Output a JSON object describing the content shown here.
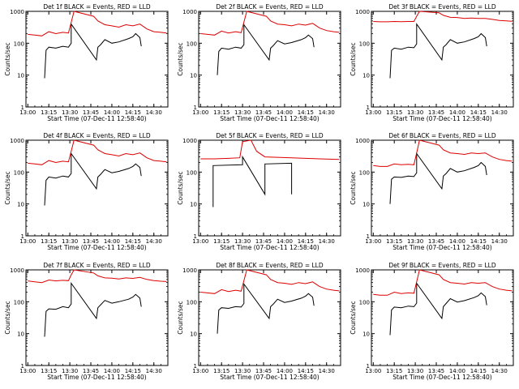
{
  "figure": {
    "x_ticks": [
      "13:00",
      "13:15",
      "13:30",
      "13:45",
      "14:00",
      "14:15",
      "14:30"
    ],
    "y_ticks": [
      "1",
      "10",
      "100",
      "1000"
    ],
    "xlabel": "Start Time (07-Dec-11 12:58:40)",
    "ylabel": "Counts/sec",
    "colors": {
      "events": "#000000",
      "lld": "#dd0000"
    }
  },
  "chart_data": [
    {
      "type": "line",
      "title": "Det 1f BLACK = Events, RED = LLD",
      "xlabel": "Start Time (07-Dec-11 12:58:40)",
      "ylabel": "Counts/sec",
      "xlim": [
        "12:58:40",
        "14:40"
      ],
      "ylim": [
        1,
        1000
      ],
      "yscale": "log",
      "series": [
        {
          "name": "Events",
          "color": "#000000",
          "x": [
            "13:12",
            "13:13",
            "13:15",
            "13:20",
            "13:25",
            "13:29",
            "13:31",
            "13:31",
            "13:49",
            "13:50",
            "13:52",
            "13:55",
            "14:00",
            "14:05",
            "14:12",
            "14:15",
            "14:17",
            "14:20",
            "14:21"
          ],
          "y": [
            8,
            60,
            75,
            70,
            80,
            75,
            100,
            400,
            30,
            75,
            90,
            130,
            100,
            110,
            140,
            160,
            200,
            150,
            80
          ]
        },
        {
          "name": "LLD",
          "color": "#dd0000",
          "x": [
            "13:00",
            "13:05",
            "13:10",
            "13:15",
            "13:20",
            "13:25",
            "13:29",
            "13:31",
            "13:33",
            "13:47",
            "13:50",
            "13:55",
            "14:00",
            "14:05",
            "14:10",
            "14:15",
            "14:20",
            "14:25",
            "14:30",
            "14:35",
            "14:39"
          ],
          "y": [
            190,
            180,
            170,
            230,
            200,
            220,
            210,
            450,
            1000,
            700,
            500,
            380,
            350,
            320,
            380,
            350,
            400,
            280,
            230,
            220,
            210
          ]
        }
      ]
    },
    {
      "type": "line",
      "title": "Det 2f BLACK = Events, RED = LLD",
      "xlabel": "Start Time (07-Dec-11 12:58:40)",
      "ylabel": "Counts/sec",
      "xlim": [
        "12:58:40",
        "14:40"
      ],
      "ylim": [
        1,
        1000
      ],
      "yscale": "log",
      "series": [
        {
          "name": "Events",
          "color": "#000000",
          "x": [
            "13:12",
            "13:13",
            "13:15",
            "13:20",
            "13:25",
            "13:29",
            "13:31",
            "13:31",
            "13:49",
            "13:50",
            "13:52",
            "13:55",
            "14:00",
            "14:05",
            "14:12",
            "14:15",
            "14:17",
            "14:20",
            "14:21"
          ],
          "y": [
            10,
            55,
            70,
            65,
            75,
            70,
            90,
            380,
            30,
            70,
            85,
            120,
            95,
            105,
            130,
            150,
            180,
            140,
            75
          ]
        },
        {
          "name": "LLD",
          "color": "#dd0000",
          "x": [
            "13:00",
            "13:05",
            "13:10",
            "13:15",
            "13:20",
            "13:25",
            "13:29",
            "13:31",
            "13:33",
            "13:47",
            "13:50",
            "13:55",
            "14:00",
            "14:05",
            "14:10",
            "14:15",
            "14:20",
            "14:25",
            "14:30",
            "14:35",
            "14:39"
          ],
          "y": [
            200,
            190,
            180,
            240,
            210,
            230,
            215,
            460,
            1000,
            700,
            500,
            400,
            380,
            350,
            400,
            370,
            420,
            300,
            250,
            230,
            220
          ]
        }
      ]
    },
    {
      "type": "line",
      "title": "Det 3f BLACK = Events, RED = LLD",
      "xlabel": "Start Time (07-Dec-11 12:58:40)",
      "ylabel": "Counts/sec",
      "xlim": [
        "12:58:40",
        "14:40"
      ],
      "ylim": [
        1,
        1000
      ],
      "yscale": "log",
      "series": [
        {
          "name": "Events",
          "color": "#000000",
          "x": [
            "13:12",
            "13:13",
            "13:15",
            "13:20",
            "13:25",
            "13:29",
            "13:31",
            "13:31",
            "13:49",
            "13:50",
            "13:52",
            "13:55",
            "14:00",
            "14:05",
            "14:12",
            "14:15",
            "14:17",
            "14:20",
            "14:21"
          ],
          "y": [
            8,
            60,
            70,
            65,
            75,
            72,
            95,
            400,
            30,
            75,
            90,
            130,
            100,
            110,
            140,
            160,
            200,
            150,
            80
          ]
        },
        {
          "name": "LLD",
          "color": "#dd0000",
          "x": [
            "13:00",
            "13:05",
            "13:10",
            "13:15",
            "13:20",
            "13:25",
            "13:29",
            "13:31",
            "13:33",
            "13:47",
            "13:50",
            "13:55",
            "14:00",
            "14:05",
            "14:10",
            "14:15",
            "14:20",
            "14:25",
            "14:30",
            "14:35",
            "14:39"
          ],
          "y": [
            480,
            470,
            470,
            480,
            475,
            480,
            480,
            700,
            1000,
            900,
            750,
            650,
            640,
            600,
            620,
            600,
            600,
            560,
            520,
            500,
            490
          ]
        }
      ]
    },
    {
      "type": "line",
      "title": "Det 4f BLACK = Events, RED = LLD",
      "xlabel": "Start Time (07-Dec-11 12:58:40)",
      "ylabel": "Counts/sec",
      "xlim": [
        "12:58:40",
        "14:40"
      ],
      "ylim": [
        1,
        1000
      ],
      "yscale": "log",
      "series": [
        {
          "name": "Events",
          "color": "#000000",
          "x": [
            "13:12",
            "13:13",
            "13:15",
            "13:20",
            "13:25",
            "13:29",
            "13:31",
            "13:31",
            "13:49",
            "13:50",
            "13:52",
            "13:55",
            "14:00",
            "14:05",
            "14:12",
            "14:15",
            "14:17",
            "14:20",
            "14:21"
          ],
          "y": [
            9,
            55,
            70,
            65,
            75,
            70,
            90,
            380,
            30,
            70,
            85,
            120,
            95,
            105,
            130,
            150,
            180,
            140,
            75
          ]
        },
        {
          "name": "LLD",
          "color": "#dd0000",
          "x": [
            "13:00",
            "13:05",
            "13:10",
            "13:15",
            "13:20",
            "13:25",
            "13:29",
            "13:31",
            "13:33",
            "13:47",
            "13:50",
            "13:55",
            "14:00",
            "14:05",
            "14:10",
            "14:15",
            "14:20",
            "14:25",
            "14:30",
            "14:35",
            "14:39"
          ],
          "y": [
            190,
            180,
            170,
            230,
            200,
            220,
            210,
            450,
            1000,
            700,
            500,
            380,
            350,
            320,
            380,
            350,
            400,
            280,
            230,
            220,
            210
          ]
        }
      ]
    },
    {
      "type": "line",
      "title": "Det 5f BLACK = Events, RED = LLD",
      "xlabel": "Start Time (07-Dec-11 12:58:40)",
      "ylabel": "Counts/sec",
      "xlim": [
        "12:58:40",
        "14:40"
      ],
      "ylim": [
        1,
        1000
      ],
      "yscale": "log",
      "series": [
        {
          "name": "Events",
          "color": "#000000",
          "x": [
            "13:09",
            "13:09",
            "13:30",
            "13:30",
            "13:46",
            "13:46",
            "14:05",
            "14:05"
          ],
          "y": [
            8,
            160,
            170,
            300,
            20,
            180,
            190,
            20
          ]
        },
        {
          "name": "LLD",
          "color": "#dd0000",
          "x": [
            "13:00",
            "13:10",
            "13:20",
            "13:28",
            "13:30",
            "13:36",
            "13:40",
            "13:46",
            "13:55",
            "14:05",
            "14:15",
            "14:25",
            "14:39"
          ],
          "y": [
            260,
            260,
            270,
            280,
            900,
            1000,
            450,
            300,
            290,
            280,
            270,
            260,
            250
          ]
        }
      ]
    },
    {
      "type": "line",
      "title": "Det 6f BLACK = Events, RED = LLD",
      "xlabel": "Start Time (07-Dec-11 12:58:40)",
      "ylabel": "Counts/sec",
      "xlim": [
        "12:58:40",
        "14:40"
      ],
      "ylim": [
        1,
        1000
      ],
      "yscale": "log",
      "series": [
        {
          "name": "Events",
          "color": "#000000",
          "x": [
            "13:12",
            "13:13",
            "13:15",
            "13:20",
            "13:25",
            "13:29",
            "13:31",
            "13:31",
            "13:49",
            "13:50",
            "13:52",
            "13:55",
            "14:00",
            "14:05",
            "14:12",
            "14:15",
            "14:17",
            "14:20",
            "14:21"
          ],
          "y": [
            10,
            60,
            70,
            68,
            75,
            72,
            95,
            380,
            30,
            75,
            90,
            130,
            100,
            110,
            140,
            160,
            200,
            150,
            80
          ]
        },
        {
          "name": "LLD",
          "color": "#dd0000",
          "x": [
            "13:00",
            "13:05",
            "13:10",
            "13:15",
            "13:20",
            "13:25",
            "13:29",
            "13:31",
            "13:33",
            "13:47",
            "13:50",
            "13:55",
            "14:00",
            "14:05",
            "14:10",
            "14:15",
            "14:20",
            "14:25",
            "14:30",
            "14:35",
            "14:39"
          ],
          "y": [
            160,
            150,
            150,
            180,
            170,
            175,
            170,
            400,
            1000,
            700,
            500,
            400,
            380,
            360,
            400,
            380,
            400,
            300,
            250,
            230,
            220
          ]
        }
      ]
    },
    {
      "type": "line",
      "title": "Det 7f BLACK = Events, RED = LLD",
      "xlabel": "Start Time (07-Dec-11 12:58:40)",
      "ylabel": "Counts/sec",
      "xlim": [
        "12:58:40",
        "14:40"
      ],
      "ylim": [
        1,
        1000
      ],
      "yscale": "log",
      "series": [
        {
          "name": "Events",
          "color": "#000000",
          "x": [
            "13:12",
            "13:13",
            "13:15",
            "13:20",
            "13:25",
            "13:29",
            "13:31",
            "13:31",
            "13:49",
            "13:50",
            "13:52",
            "13:55",
            "14:00",
            "14:05",
            "14:12",
            "14:15",
            "14:17",
            "14:20",
            "14:21"
          ],
          "y": [
            8,
            50,
            60,
            58,
            70,
            65,
            85,
            380,
            30,
            65,
            80,
            110,
            90,
            100,
            120,
            140,
            170,
            130,
            70
          ]
        },
        {
          "name": "LLD",
          "color": "#dd0000",
          "x": [
            "13:00",
            "13:05",
            "13:10",
            "13:15",
            "13:20",
            "13:25",
            "13:29",
            "13:31",
            "13:33",
            "13:47",
            "13:50",
            "13:55",
            "14:00",
            "14:05",
            "14:10",
            "14:15",
            "14:20",
            "14:25",
            "14:30",
            "14:35",
            "14:39"
          ],
          "y": [
            450,
            420,
            400,
            480,
            450,
            470,
            460,
            700,
            1000,
            800,
            650,
            560,
            550,
            520,
            560,
            540,
            580,
            500,
            460,
            440,
            430
          ]
        }
      ]
    },
    {
      "type": "line",
      "title": "Det 8f BLACK = Events, RED = LLD",
      "xlabel": "Start Time (07-Dec-11 12:58:40)",
      "ylabel": "Counts/sec",
      "xlim": [
        "12:58:40",
        "14:40"
      ],
      "ylim": [
        1,
        1000
      ],
      "yscale": "log",
      "series": [
        {
          "name": "Events",
          "color": "#000000",
          "x": [
            "13:12",
            "13:13",
            "13:15",
            "13:20",
            "13:25",
            "13:29",
            "13:31",
            "13:31",
            "13:49",
            "13:50",
            "13:52",
            "13:55",
            "14:00",
            "14:05",
            "14:12",
            "14:15",
            "14:17",
            "14:20",
            "14:21"
          ],
          "y": [
            10,
            55,
            65,
            62,
            70,
            68,
            88,
            360,
            30,
            70,
            85,
            120,
            95,
            105,
            130,
            150,
            180,
            140,
            75
          ]
        },
        {
          "name": "LLD",
          "color": "#dd0000",
          "x": [
            "13:00",
            "13:05",
            "13:10",
            "13:15",
            "13:20",
            "13:25",
            "13:29",
            "13:31",
            "13:33",
            "13:47",
            "13:50",
            "13:55",
            "14:00",
            "14:05",
            "14:10",
            "14:15",
            "14:20",
            "14:25",
            "14:30",
            "14:35",
            "14:39"
          ],
          "y": [
            200,
            190,
            180,
            240,
            210,
            230,
            215,
            460,
            1000,
            700,
            500,
            400,
            380,
            350,
            400,
            370,
            420,
            300,
            250,
            230,
            220
          ]
        }
      ]
    },
    {
      "type": "line",
      "title": "Det 9f BLACK = Events, RED = LLD",
      "xlabel": "Start Time (07-Dec-11 12:58:40)",
      "ylabel": "Counts/sec",
      "xlim": [
        "12:58:40",
        "14:40"
      ],
      "ylim": [
        1,
        1000
      ],
      "yscale": "log",
      "series": [
        {
          "name": "Events",
          "color": "#000000",
          "x": [
            "13:12",
            "13:13",
            "13:15",
            "13:20",
            "13:25",
            "13:29",
            "13:31",
            "13:31",
            "13:49",
            "13:50",
            "13:52",
            "13:55",
            "14:00",
            "14:05",
            "14:12",
            "14:15",
            "14:17",
            "14:20",
            "14:21"
          ],
          "y": [
            9,
            55,
            68,
            65,
            73,
            70,
            90,
            380,
            30,
            70,
            88,
            125,
            98,
            108,
            135,
            155,
            190,
            145,
            78
          ]
        },
        {
          "name": "LLD",
          "color": "#dd0000",
          "x": [
            "13:00",
            "13:05",
            "13:10",
            "13:15",
            "13:20",
            "13:25",
            "13:29",
            "13:31",
            "13:33",
            "13:47",
            "13:50",
            "13:55",
            "14:00",
            "14:05",
            "14:10",
            "14:15",
            "14:20",
            "14:25",
            "14:30",
            "14:35",
            "14:39"
          ],
          "y": [
            170,
            160,
            160,
            200,
            180,
            190,
            185,
            420,
            1000,
            700,
            500,
            400,
            380,
            360,
            400,
            380,
            400,
            300,
            250,
            230,
            220
          ]
        }
      ]
    }
  ]
}
